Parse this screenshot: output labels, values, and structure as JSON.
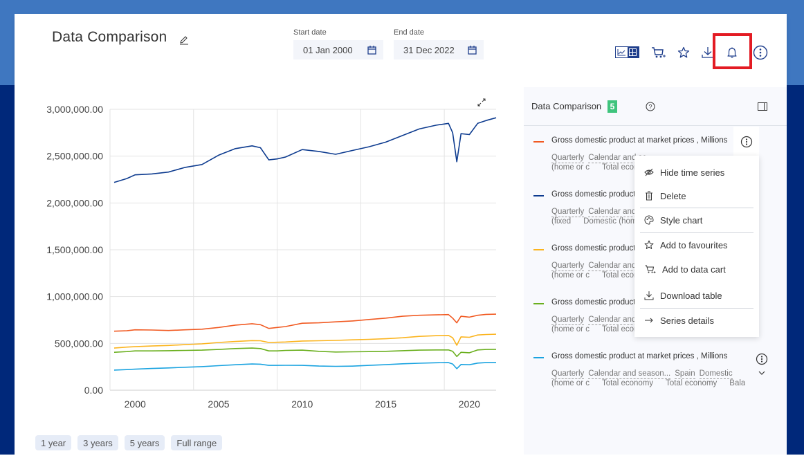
{
  "header": {
    "title": "Data Comparison",
    "start_date_label": "Start date",
    "start_date_value": "01 Jan 2000",
    "end_date_label": "End date",
    "end_date_value": "31 Dec 2022"
  },
  "toolbar": {
    "items": [
      "chart-view-icon",
      "table-view-icon",
      "add-to-cart-icon",
      "favourite-star-icon",
      "download-icon",
      "notification-bell-icon",
      "more-options-icon"
    ],
    "highlight_color": "#e31b23"
  },
  "side_panel": {
    "title": "Data Comparison",
    "count": "5",
    "series": [
      {
        "name": "Gross domestic product at market prices , Millions",
        "color": "#f15a22",
        "meta_line1": [
          "Quarterly",
          "Calendar and se"
        ],
        "meta_line2": [
          "(home or c",
          "Total econom"
        ]
      },
      {
        "name": "Gross domestic product at n",
        "color": "#0d3b8f",
        "meta_line1": [
          "Quarterly",
          "Calendar and se"
        ],
        "meta_line2": [
          "(fixed",
          "Domestic (home c"
        ]
      },
      {
        "name": "Gross domestic product at n",
        "color": "#fbb41e",
        "meta_line1": [
          "Quarterly",
          "Calendar and se"
        ],
        "meta_line2": [
          "(home or c",
          "Total econom"
        ]
      },
      {
        "name": "Gross domestic product at n",
        "color": "#6aaf1e",
        "meta_line1": [
          "Quarterly",
          "Calendar and se"
        ],
        "meta_line2": [
          "(home or c",
          "Total econom"
        ]
      },
      {
        "name": "Gross domestic product at market prices , Millions",
        "color": "#1aa3e0",
        "meta_line1": [
          "Quarterly",
          "Calendar and season...",
          "Spain",
          "Domestic"
        ],
        "meta_line2": [
          "(home or c",
          "Total economy",
          "Total economy",
          "Balance"
        ]
      }
    ]
  },
  "context_menu": {
    "items": [
      {
        "icon": "hide-icon",
        "label": "Hide time series"
      },
      {
        "icon": "trash-icon",
        "label": "Delete"
      },
      {
        "icon": "palette-icon",
        "label": "Style chart"
      },
      {
        "icon": "star-icon",
        "label": "Add to favourites"
      },
      {
        "icon": "cart-icon",
        "label": "Add to data cart"
      },
      {
        "icon": "download-icon",
        "label": "Download table"
      },
      {
        "icon": "arrow-right-icon",
        "label": "Series details"
      }
    ]
  },
  "range_buttons": [
    "1 year",
    "3 years",
    "5 years",
    "Full range"
  ],
  "chart_data": {
    "type": "line",
    "title": "",
    "xlabel": "",
    "ylabel": "",
    "xlim": [
      1998.5,
      2021.6
    ],
    "ylim": [
      0,
      3000000
    ],
    "x_ticks": [
      2000,
      2005,
      2010,
      2015,
      2020
    ],
    "x_tick_labels": [
      "2000",
      "2005",
      "2010",
      "2015",
      "2020"
    ],
    "y_ticks": [
      0,
      500000,
      1000000,
      1500000,
      2000000,
      2500000,
      3000000
    ],
    "y_tick_labels": [
      "0.00",
      "500,000.00",
      "1,000,000.00",
      "1,500,000.00",
      "2,000,000.00",
      "2,500,000.00",
      "3,000,000.00"
    ],
    "grid": true,
    "x": [
      1998.75,
      1999.5,
      2000.0,
      2001.0,
      2002.0,
      2003.0,
      2004.0,
      2005.0,
      2006.0,
      2007.0,
      2007.5,
      2008.0,
      2008.5,
      2009.0,
      2010.0,
      2011.0,
      2012.0,
      2013.0,
      2014.0,
      2015.0,
      2016.0,
      2017.0,
      2018.0,
      2018.75,
      2019.0,
      2019.25,
      2019.5,
      2020.0,
      2020.5,
      2021.0,
      2021.6
    ],
    "series": [
      {
        "name": "Gross domestic product at market prices , Millions (series 2)",
        "color": "#0d3b8f",
        "values": [
          2220000,
          2260000,
          2300000,
          2310000,
          2330000,
          2380000,
          2410000,
          2510000,
          2580000,
          2610000,
          2590000,
          2460000,
          2470000,
          2490000,
          2570000,
          2550000,
          2520000,
          2560000,
          2600000,
          2650000,
          2720000,
          2790000,
          2830000,
          2850000,
          2750000,
          2440000,
          2740000,
          2730000,
          2850000,
          2880000,
          2910000
        ]
      },
      {
        "name": "Gross domestic product at market prices , Millions",
        "color": "#f15a22",
        "values": [
          630000,
          635000,
          645000,
          643000,
          638000,
          645000,
          652000,
          670000,
          695000,
          710000,
          700000,
          660000,
          670000,
          680000,
          715000,
          720000,
          730000,
          740000,
          755000,
          770000,
          790000,
          800000,
          805000,
          808000,
          770000,
          720000,
          790000,
          780000,
          800000,
          810000,
          812000
        ]
      },
      {
        "name": "Gross domestic product at market prices , Millions (series 3)",
        "color": "#fbb41e",
        "values": [
          450000,
          460000,
          465000,
          472000,
          478000,
          487000,
          495000,
          510000,
          520000,
          530000,
          528000,
          510000,
          512000,
          515000,
          525000,
          528000,
          532000,
          538000,
          543000,
          550000,
          560000,
          575000,
          582000,
          585000,
          560000,
          480000,
          570000,
          565000,
          590000,
          595000,
          598000
        ]
      },
      {
        "name": "Gross domestic product at market prices , Millions (series 4)",
        "color": "#6aaf1e",
        "values": [
          405000,
          412000,
          420000,
          420000,
          422000,
          425000,
          428000,
          435000,
          445000,
          450000,
          445000,
          420000,
          420000,
          425000,
          428000,
          415000,
          408000,
          410000,
          412000,
          415000,
          422000,
          428000,
          430000,
          430000,
          415000,
          360000,
          405000,
          400000,
          430000,
          435000,
          437000
        ]
      },
      {
        "name": "Gross domestic product at market prices , Millions (series 5)",
        "color": "#1aa3e0",
        "values": [
          215000,
          220000,
          225000,
          232000,
          238000,
          245000,
          252000,
          262000,
          272000,
          280000,
          278000,
          265000,
          265000,
          266000,
          265000,
          258000,
          255000,
          257000,
          265000,
          273000,
          282000,
          288000,
          293000,
          295000,
          280000,
          230000,
          275000,
          272000,
          290000,
          295000,
          296000
        ]
      }
    ]
  }
}
